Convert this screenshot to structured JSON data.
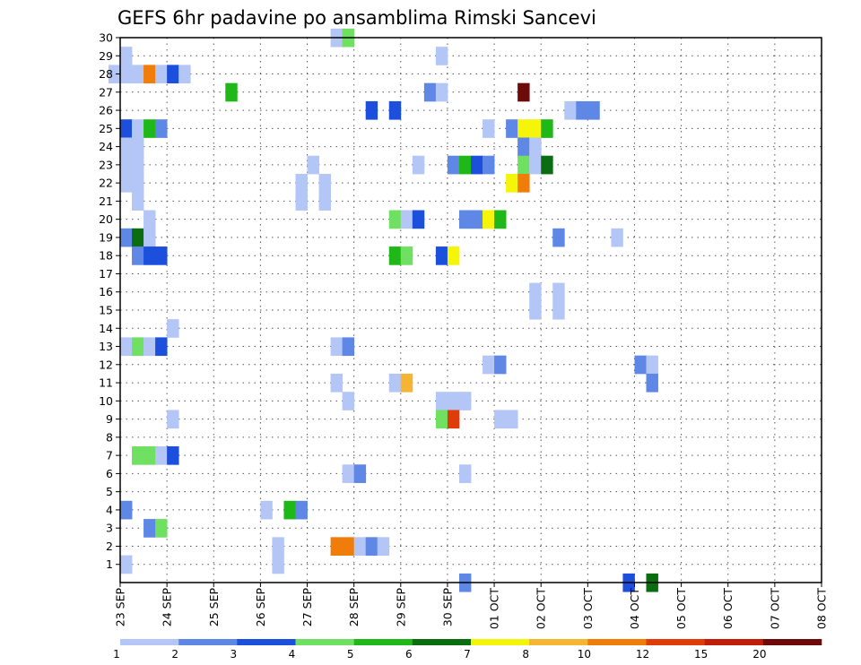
{
  "chart_data": {
    "type": "heatmap",
    "title": "GEFS 6hr padavine po ansamblima Rimski Sancevi",
    "y_ticks": [
      1,
      2,
      3,
      4,
      5,
      6,
      7,
      8,
      9,
      10,
      11,
      12,
      13,
      14,
      15,
      16,
      17,
      18,
      19,
      20,
      21,
      22,
      23,
      24,
      25,
      26,
      27,
      28,
      29,
      30
    ],
    "ylim": [
      0,
      30
    ],
    "x_ticks": [
      "23 SEP",
      "24 SEP",
      "25 SEP",
      "26 SEP",
      "27 SEP",
      "28 SEP",
      "29 SEP",
      "30 SEP",
      "01 OCT",
      "02 OCT",
      "03 OCT",
      "04 OCT",
      "05 OCT",
      "06 OCT",
      "07 OCT",
      "08 OCT"
    ],
    "xlim_days": [
      0,
      15
    ],
    "grid": true,
    "colorbar": {
      "colors": [
        "#b4c6f5",
        "#5f87e6",
        "#1b4fdc",
        "#6fe062",
        "#20b818",
        "#0a6e10",
        "#f5f50a",
        "#f5b432",
        "#f07d0a",
        "#e03c0a",
        "#c01e0a",
        "#6e0a0a"
      ],
      "labels": [
        "1",
        "2",
        "3",
        "4",
        "5",
        "6",
        "7",
        "8",
        "10",
        "12",
        "15",
        "20"
      ]
    },
    "cells": [
      {
        "member": 30,
        "time_steps": [
          18
        ],
        "level": 1
      },
      {
        "member": 30,
        "time_steps": [
          19
        ],
        "level": 4
      },
      {
        "member": 29,
        "time_steps": [
          0
        ],
        "level": 1
      },
      {
        "member": 29,
        "time_steps": [
          27
        ],
        "level": 1
      },
      {
        "member": 28,
        "time_steps": [
          -1,
          0
        ],
        "level": 1
      },
      {
        "member": 28,
        "time_steps": [
          1
        ],
        "level": 1
      },
      {
        "member": 28,
        "time_steps": [
          2
        ],
        "level": 9
      },
      {
        "member": 28,
        "time_steps": [
          3
        ],
        "level": 1
      },
      {
        "member": 28,
        "time_steps": [
          4
        ],
        "level": 3
      },
      {
        "member": 28,
        "time_steps": [
          5
        ],
        "level": 1
      },
      {
        "member": 27,
        "time_steps": [
          9
        ],
        "level": 5
      },
      {
        "member": 27,
        "time_steps": [
          26
        ],
        "level": 2
      },
      {
        "member": 27,
        "time_steps": [
          27
        ],
        "level": 1
      },
      {
        "member": 27,
        "time_steps": [
          34
        ],
        "level": 12
      },
      {
        "member": 26,
        "time_steps": [
          21
        ],
        "level": 3
      },
      {
        "member": 26,
        "time_steps": [
          23
        ],
        "level": 3
      },
      {
        "member": 26,
        "time_steps": [
          38
        ],
        "level": 1
      },
      {
        "member": 26,
        "time_steps": [
          39,
          40
        ],
        "level": 2
      },
      {
        "member": 25,
        "time_steps": [
          0
        ],
        "level": 3
      },
      {
        "member": 25,
        "time_steps": [
          1
        ],
        "level": 1
      },
      {
        "member": 25,
        "time_steps": [
          2
        ],
        "level": 5
      },
      {
        "member": 25,
        "time_steps": [
          3
        ],
        "level": 2
      },
      {
        "member": 25,
        "time_steps": [
          31
        ],
        "level": 1
      },
      {
        "member": 25,
        "time_steps": [
          33
        ],
        "level": 2
      },
      {
        "member": 25,
        "time_steps": [
          34,
          35
        ],
        "level": 7
      },
      {
        "member": 25,
        "time_steps": [
          36
        ],
        "level": 5
      },
      {
        "member": 24,
        "time_steps": [
          0,
          1
        ],
        "level": 1
      },
      {
        "member": 24,
        "time_steps": [
          34
        ],
        "level": 2
      },
      {
        "member": 24,
        "time_steps": [
          35
        ],
        "level": 1
      },
      {
        "member": 23,
        "time_steps": [
          0,
          1
        ],
        "level": 1
      },
      {
        "member": 23,
        "time_steps": [
          16
        ],
        "level": 1
      },
      {
        "member": 23,
        "time_steps": [
          25
        ],
        "level": 1
      },
      {
        "member": 23,
        "time_steps": [
          28
        ],
        "level": 2
      },
      {
        "member": 23,
        "time_steps": [
          29
        ],
        "level": 5
      },
      {
        "member": 23,
        "time_steps": [
          30
        ],
        "level": 3
      },
      {
        "member": 23,
        "time_steps": [
          31
        ],
        "level": 2
      },
      {
        "member": 23,
        "time_steps": [
          34
        ],
        "level": 4
      },
      {
        "member": 23,
        "time_steps": [
          35
        ],
        "level": 1
      },
      {
        "member": 23,
        "time_steps": [
          36
        ],
        "level": 6
      },
      {
        "member": 22,
        "time_steps": [
          0,
          1
        ],
        "level": 1
      },
      {
        "member": 22,
        "time_steps": [
          15
        ],
        "level": 1
      },
      {
        "member": 22,
        "time_steps": [
          17
        ],
        "level": 1
      },
      {
        "member": 22,
        "time_steps": [
          33
        ],
        "level": 7
      },
      {
        "member": 22,
        "time_steps": [
          34
        ],
        "level": 9
      },
      {
        "member": 21,
        "time_steps": [
          1
        ],
        "level": 1
      },
      {
        "member": 21,
        "time_steps": [
          15
        ],
        "level": 1
      },
      {
        "member": 21,
        "time_steps": [
          17
        ],
        "level": 1
      },
      {
        "member": 20,
        "time_steps": [
          2
        ],
        "level": 1
      },
      {
        "member": 20,
        "time_steps": [
          23
        ],
        "level": 4
      },
      {
        "member": 20,
        "time_steps": [
          24
        ],
        "level": 1
      },
      {
        "member": 20,
        "time_steps": [
          25
        ],
        "level": 3
      },
      {
        "member": 20,
        "time_steps": [
          29,
          30
        ],
        "level": 2
      },
      {
        "member": 20,
        "time_steps": [
          31
        ],
        "level": 7
      },
      {
        "member": 20,
        "time_steps": [
          32
        ],
        "level": 5
      },
      {
        "member": 19,
        "time_steps": [
          0
        ],
        "level": 2
      },
      {
        "member": 19,
        "time_steps": [
          1
        ],
        "level": 6
      },
      {
        "member": 19,
        "time_steps": [
          2
        ],
        "level": 1
      },
      {
        "member": 19,
        "time_steps": [
          37
        ],
        "level": 2
      },
      {
        "member": 19,
        "time_steps": [
          42
        ],
        "level": 1
      },
      {
        "member": 18,
        "time_steps": [
          1
        ],
        "level": 2
      },
      {
        "member": 18,
        "time_steps": [
          2,
          3
        ],
        "level": 3
      },
      {
        "member": 18,
        "time_steps": [
          23
        ],
        "level": 5
      },
      {
        "member": 18,
        "time_steps": [
          24
        ],
        "level": 4
      },
      {
        "member": 18,
        "time_steps": [
          27
        ],
        "level": 3
      },
      {
        "member": 18,
        "time_steps": [
          28
        ],
        "level": 7
      },
      {
        "member": 16,
        "time_steps": [
          35
        ],
        "level": 1
      },
      {
        "member": 16,
        "time_steps": [
          37
        ],
        "level": 1
      },
      {
        "member": 15,
        "time_steps": [
          35
        ],
        "level": 1
      },
      {
        "member": 15,
        "time_steps": [
          37
        ],
        "level": 1
      },
      {
        "member": 14,
        "time_steps": [
          4
        ],
        "level": 1
      },
      {
        "member": 13,
        "time_steps": [
          0
        ],
        "level": 1
      },
      {
        "member": 13,
        "time_steps": [
          1
        ],
        "level": 4
      },
      {
        "member": 13,
        "time_steps": [
          2
        ],
        "level": 1
      },
      {
        "member": 13,
        "time_steps": [
          3
        ],
        "level": 3
      },
      {
        "member": 13,
        "time_steps": [
          18
        ],
        "level": 1
      },
      {
        "member": 13,
        "time_steps": [
          19
        ],
        "level": 2
      },
      {
        "member": 12,
        "time_steps": [
          31
        ],
        "level": 1
      },
      {
        "member": 12,
        "time_steps": [
          32
        ],
        "level": 2
      },
      {
        "member": 12,
        "time_steps": [
          44
        ],
        "level": 2
      },
      {
        "member": 12,
        "time_steps": [
          45
        ],
        "level": 1
      },
      {
        "member": 11,
        "time_steps": [
          18
        ],
        "level": 1
      },
      {
        "member": 11,
        "time_steps": [
          23
        ],
        "level": 1
      },
      {
        "member": 11,
        "time_steps": [
          24
        ],
        "level": 8
      },
      {
        "member": 11,
        "time_steps": [
          45
        ],
        "level": 2
      },
      {
        "member": 10,
        "time_steps": [
          19
        ],
        "level": 1
      },
      {
        "member": 10,
        "time_steps": [
          27,
          28
        ],
        "level": 1
      },
      {
        "member": 10,
        "time_steps": [
          29
        ],
        "level": 1
      },
      {
        "member": 9,
        "time_steps": [
          4
        ],
        "level": 1
      },
      {
        "member": 9,
        "time_steps": [
          27
        ],
        "level": 4
      },
      {
        "member": 9,
        "time_steps": [
          28
        ],
        "level": 10
      },
      {
        "member": 9,
        "time_steps": [
          32,
          33
        ],
        "level": 1
      },
      {
        "member": 7,
        "time_steps": [
          1,
          2
        ],
        "level": 4
      },
      {
        "member": 7,
        "time_steps": [
          3
        ],
        "level": 1
      },
      {
        "member": 7,
        "time_steps": [
          4
        ],
        "level": 3
      },
      {
        "member": 6,
        "time_steps": [
          19
        ],
        "level": 1
      },
      {
        "member": 6,
        "time_steps": [
          20
        ],
        "level": 2
      },
      {
        "member": 6,
        "time_steps": [
          29
        ],
        "level": 1
      },
      {
        "member": 4,
        "time_steps": [
          0
        ],
        "level": 2
      },
      {
        "member": 4,
        "time_steps": [
          12
        ],
        "level": 1
      },
      {
        "member": 4,
        "time_steps": [
          14
        ],
        "level": 5
      },
      {
        "member": 4,
        "time_steps": [
          15
        ],
        "level": 2
      },
      {
        "member": 3,
        "time_steps": [
          2
        ],
        "level": 2
      },
      {
        "member": 3,
        "time_steps": [
          3
        ],
        "level": 4
      },
      {
        "member": 2,
        "time_steps": [
          13
        ],
        "level": 1
      },
      {
        "member": 2,
        "time_steps": [
          18,
          19
        ],
        "level": 9
      },
      {
        "member": 2,
        "time_steps": [
          20
        ],
        "level": 1
      },
      {
        "member": 2,
        "time_steps": [
          21
        ],
        "level": 2
      },
      {
        "member": 2,
        "time_steps": [
          22
        ],
        "level": 1
      },
      {
        "member": 1,
        "time_steps": [
          0
        ],
        "level": 1
      },
      {
        "member": 1,
        "time_steps": [
          13
        ],
        "level": 1
      },
      {
        "member": 0,
        "time_steps": [
          29
        ],
        "level": 2
      },
      {
        "member": 0,
        "time_steps": [
          43
        ],
        "level": 3
      },
      {
        "member": 0,
        "time_steps": [
          45
        ],
        "level": 6
      }
    ]
  }
}
